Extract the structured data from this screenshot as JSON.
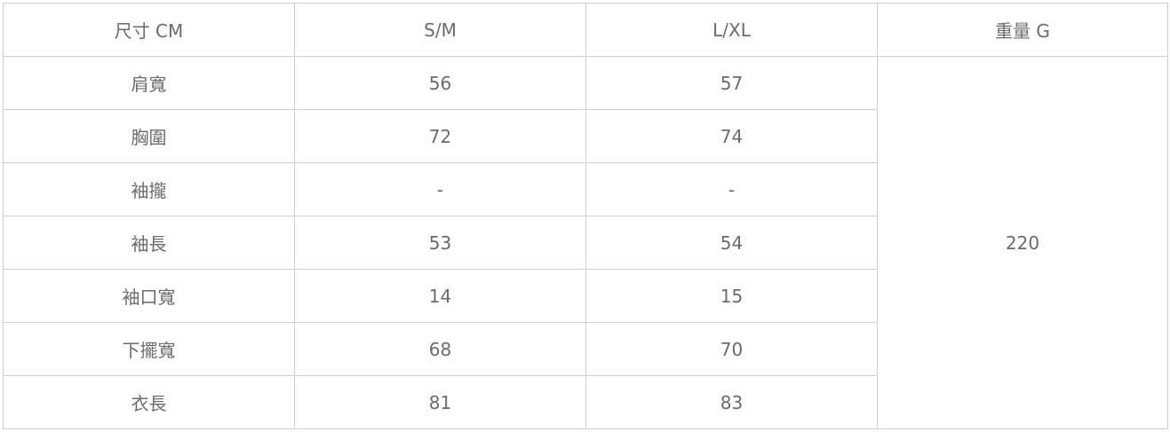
{
  "table": {
    "header": {
      "size_label": "尺寸 CM",
      "col_sm": "S/M",
      "col_lxl": "L/XL",
      "weight_label": "重量 G"
    },
    "rows": [
      {
        "label": "肩寬",
        "sm": "56",
        "lxl": "57"
      },
      {
        "label": "胸圍",
        "sm": "72",
        "lxl": "74"
      },
      {
        "label": "袖攏",
        "sm": "-",
        "lxl": "-"
      },
      {
        "label": "袖長",
        "sm": "53",
        "lxl": "54"
      },
      {
        "label": "袖口寬",
        "sm": "14",
        "lxl": "15"
      },
      {
        "label": "下擺寬",
        "sm": "68",
        "lxl": "70"
      },
      {
        "label": "衣長",
        "sm": "81",
        "lxl": "83"
      }
    ],
    "weight_value": "220"
  }
}
